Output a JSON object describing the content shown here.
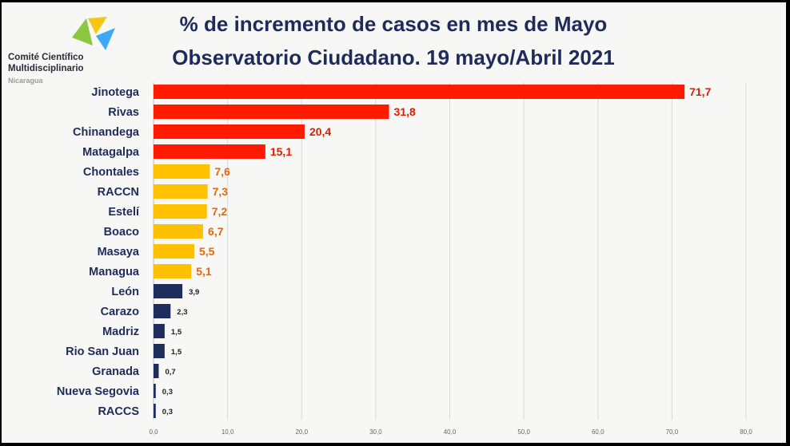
{
  "logo": {
    "org_line1": "Comité Científico",
    "org_line2": "Multidisciplinario",
    "country": "Nicaragua",
    "colors": [
      "#8dc63f",
      "#f5c518",
      "#3fa9f5"
    ]
  },
  "header": {
    "title_line1": "% de incremento de casos en mes de Mayo",
    "title_line2": "Observatorio Ciudadano. 19 mayo/Abril 2021"
  },
  "colors": {
    "high": "#ff1a00",
    "medium": "#ffc000",
    "low": "#1f2d5c",
    "high_label": "#e01b00",
    "medium_label": "#e06a10",
    "low_label": "#222222",
    "grid": "#d8d8d8",
    "background": "#f7f7f5"
  },
  "chart_data": {
    "type": "bar",
    "orientation": "horizontal",
    "categories": [
      "Jinotega",
      "Rivas",
      "Chinandega",
      "Matagalpa",
      "Chontales",
      "RACCN",
      "Estelí",
      "Boaco",
      "Masaya",
      "Managua",
      "León",
      "Carazo",
      "Madriz",
      "Rio San Juan",
      "Granada",
      "Nueva Segovia",
      "RACCS"
    ],
    "values": [
      71.7,
      31.8,
      20.4,
      15.1,
      7.6,
      7.3,
      7.2,
      6.7,
      5.5,
      5.1,
      3.9,
      2.3,
      1.5,
      1.5,
      0.7,
      0.3,
      0.3
    ],
    "value_labels": [
      "71,7",
      "31,8",
      "20,4",
      "15,1",
      "7,6",
      "7,3",
      "7,2",
      "6,7",
      "5,5",
      "5,1",
      "3,9",
      "2,3",
      "1,5",
      "1,5",
      "0,7",
      "0,3",
      "0,3"
    ],
    "groups": [
      "high",
      "high",
      "high",
      "high",
      "medium",
      "medium",
      "medium",
      "medium",
      "medium",
      "medium",
      "low",
      "low",
      "low",
      "low",
      "low",
      "low",
      "low"
    ],
    "xlim": [
      0,
      80
    ],
    "xticks": [
      "0,0",
      "10,0",
      "20,0",
      "30,0",
      "40,0",
      "50,0",
      "60,0",
      "70,0",
      "80,0"
    ],
    "grid": true,
    "legend": "none"
  }
}
